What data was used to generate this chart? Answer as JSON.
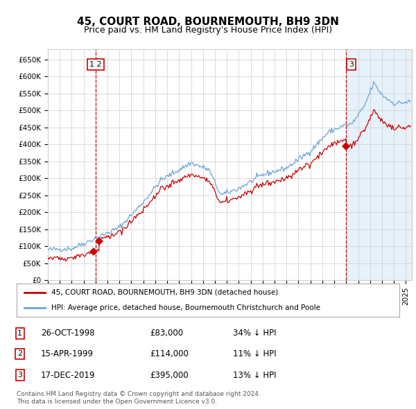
{
  "title": "45, COURT ROAD, BOURNEMOUTH, BH9 3DN",
  "subtitle": "Price paid vs. HM Land Registry's House Price Index (HPI)",
  "title_fontsize": 11,
  "subtitle_fontsize": 9,
  "sale_dates_num": [
    1998.82,
    1999.29,
    2019.96
  ],
  "sale_prices": [
    83000,
    114000,
    395000
  ],
  "sale_labels": [
    "1",
    "2",
    "3"
  ],
  "vline_dates": [
    1999.0,
    2020.0
  ],
  "hpi_color": "#6ba3d6",
  "hpi_fill_color": "#d6e8f7",
  "sale_line_color": "#cc0000",
  "sale_dot_color": "#cc0000",
  "vline_color": "#cc0000",
  "legend_line1": "45, COURT ROAD, BOURNEMOUTH, BH9 3DN (detached house)",
  "legend_line2": "HPI: Average price, detached house, Bournemouth Christchurch and Poole",
  "table_entries": [
    {
      "num": "1",
      "date": "26-OCT-1998",
      "price": "£83,000",
      "pct": "34% ↓ HPI"
    },
    {
      "num": "2",
      "date": "15-APR-1999",
      "price": "£114,000",
      "pct": "11% ↓ HPI"
    },
    {
      "num": "3",
      "date": "17-DEC-2019",
      "price": "£395,000",
      "pct": "13% ↓ HPI"
    }
  ],
  "footnote1": "Contains HM Land Registry data © Crown copyright and database right 2024.",
  "footnote2": "This data is licensed under the Open Government Licence v3.0.",
  "ylim": [
    0,
    680000
  ],
  "xlim_start": 1995.0,
  "xlim_end": 2025.5,
  "background_color": "#ffffff",
  "grid_color": "#cccccc",
  "shade_start": 2020.0
}
